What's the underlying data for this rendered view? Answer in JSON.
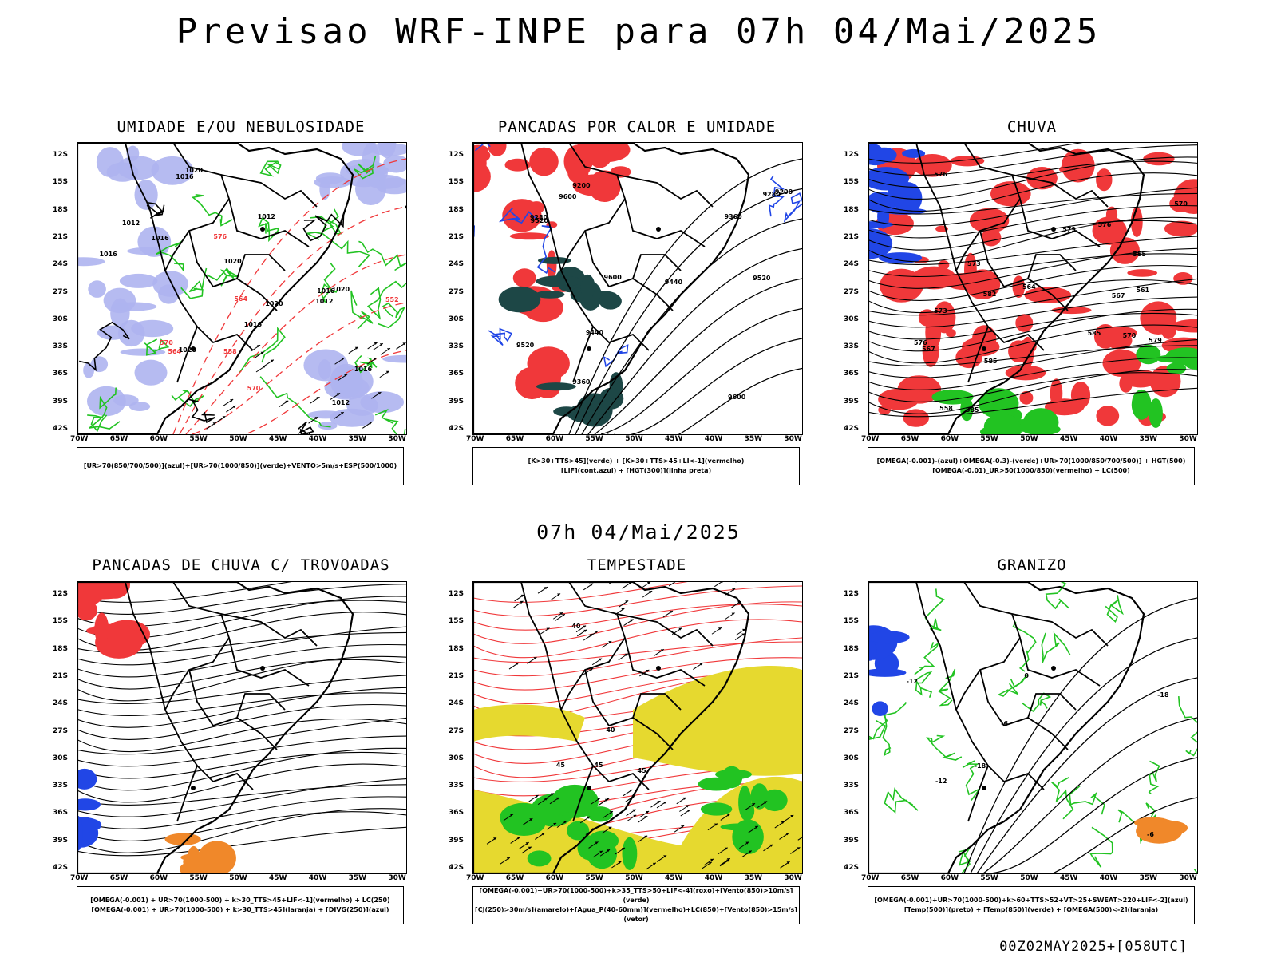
{
  "header": {
    "title": "Previsao WRF-INPE  para 07h 04/Mai/2025"
  },
  "middle": {
    "date": "07h 04/Mai/2025"
  },
  "footer": {
    "stamp": "00Z02MAY2025+[058UTC]"
  },
  "axes": {
    "lat_ticks": [
      "12S",
      "15S",
      "18S",
      "21S",
      "24S",
      "27S",
      "30S",
      "33S",
      "36S",
      "39S",
      "42S"
    ],
    "lon_ticks": [
      "70W",
      "65W",
      "60W",
      "55W",
      "50W",
      "45W",
      "40W",
      "35W",
      "30W"
    ]
  },
  "panels": [
    {
      "title": "UMIDADE E/OU NEBULOSIDADE",
      "legend": [
        "[UR>70(850/700/500)](azul)+[UR>70(1000/850)](verde)+VENTO>5m/s+ESP(500/1000)"
      ],
      "contour_labels": [
        "1016",
        "1012",
        "1020",
        "1016",
        "1020",
        "1012",
        "1016",
        "1020",
        "1016",
        "1012",
        "1020",
        "1016",
        "1012",
        "1020",
        "1016",
        "570",
        "576",
        "564",
        "570",
        "558",
        "552",
        "564"
      ]
    },
    {
      "title": "PANCADAS POR CALOR E UMIDADE",
      "legend": [
        "[K>30+TTS>45](verde) + [K>30+TTS>45+LI<-1](vermelho)",
        "[LIF](cont.azul) + [HGT(300)](linha preta)"
      ],
      "contour_labels": [
        "9600",
        "9520",
        "9600",
        "9600",
        "9520",
        "9520",
        "9440",
        "9360",
        "9440",
        "9280",
        "9360",
        "9200",
        "9280",
        "9200"
      ]
    },
    {
      "title": "CHUVA",
      "legend": [
        "[OMEGA(-0.001)-(azul)+OMEGA(-0.3)-(verde)+UR>70(1000/850/700/500)] + HGT(500)",
        "[OMEGA(-0.01)_UR>50(1000/850)(vermelho) + LC(500)"
      ],
      "contour_labels": [
        "585",
        "585",
        "582",
        "585",
        "579",
        "576",
        "573",
        "570",
        "567",
        "576",
        "573",
        "570",
        "564",
        "567",
        "576",
        "579",
        "561",
        "558",
        "555"
      ]
    },
    {
      "title": "PANCADAS DE CHUVA C/ TROVOADAS",
      "legend": [
        "[OMEGA(-0.001) + UR>70(1000-500) + k>30_TTS>45+LIF<-1](vermelho) + LC(250)",
        "[OMEGA(-0.001) + UR>70(1000-500) + k>30_TTS>45](laranja) + [DIVG(250)](azul)"
      ],
      "contour_labels": []
    },
    {
      "title": "TEMPESTADE",
      "legend": [
        "[OMEGA(-0.001)+UR>70(1000-500)+k>35_TTS>50+LIF<-4](roxo)+[Vento(850)>10m/s](verde)",
        "[CJ(250)>30m/s](amarelo)+[Agua_P(40-60mm)](vermelho)+LC(850)+[Vento(850)>15m/s](vetor)"
      ],
      "contour_labels": [
        "45",
        "40",
        "45",
        "40",
        "45"
      ]
    },
    {
      "title": "GRANIZO",
      "legend": [
        "[OMEGA(-0.001)+UR>70(1000-500)+k>60+TTS>52+VT>25+SWEAT>220+LIF<-2](azul)",
        "[Temp(500)](preto) + [Temp(850)](verde) + [OMEGA(500)<-2](laranja)"
      ],
      "contour_labels": [
        "-6",
        "-12",
        "-12",
        "-18",
        "-18",
        "0",
        "-6"
      ]
    }
  ],
  "colors": {
    "blue_shade": "#aeb4f0",
    "green": "#22c322",
    "red": "#f0383a",
    "dark_teal": "#1d4746",
    "yellow": "#e6d92f",
    "orange": "#f0882a",
    "blue": "#2146e6"
  }
}
